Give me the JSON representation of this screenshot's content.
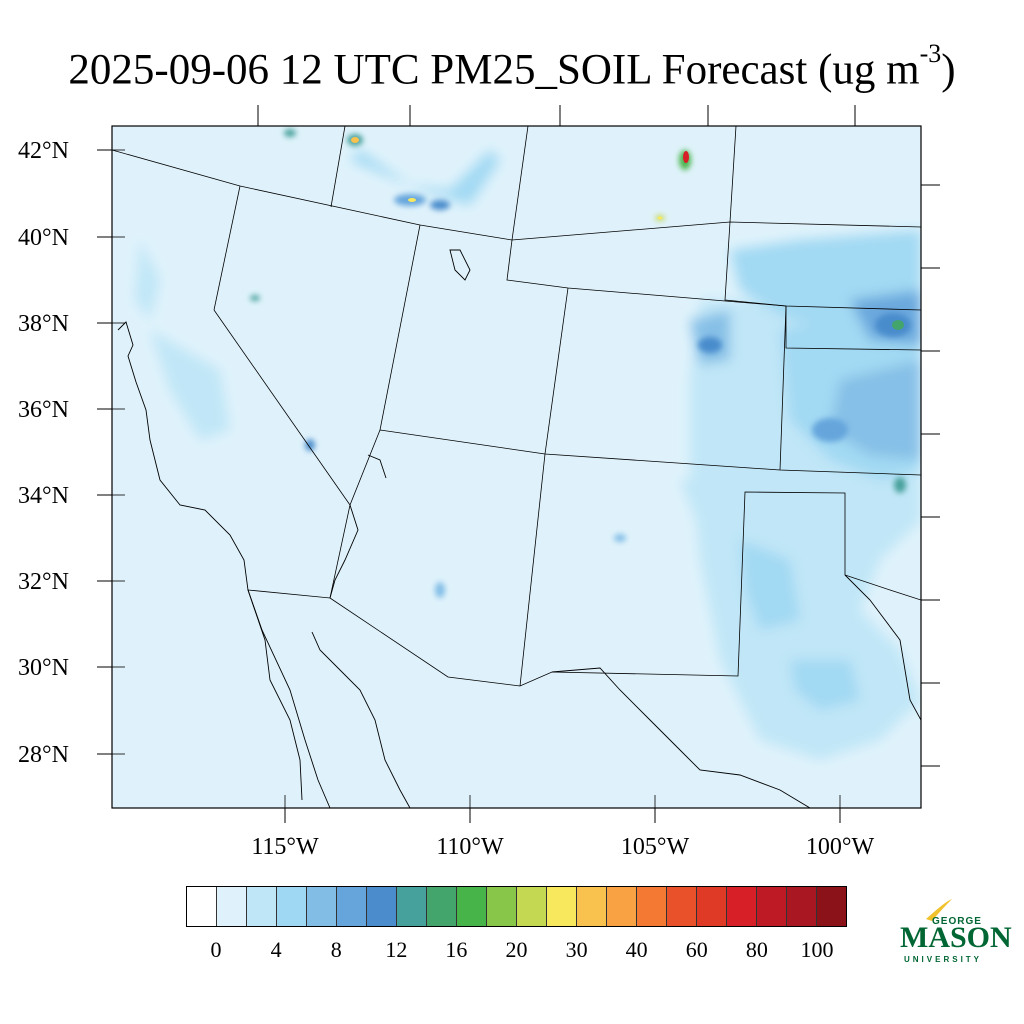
{
  "title": {
    "main": "2025-09-06 12 UTC PM25_SOIL Forecast (ug m",
    "exponent": "-3",
    "close": ")"
  },
  "map": {
    "latitude_labels": [
      "42°N",
      "40°N",
      "38°N",
      "36°N",
      "34°N",
      "32°N",
      "30°N",
      "28°N"
    ],
    "longitude_labels": [
      "115°W",
      "110°W",
      "105°W",
      "100°W"
    ],
    "colors": {
      "background": "#dff2fb",
      "boundary": "#000000"
    }
  },
  "colorbar": {
    "colors": [
      "#ffffff",
      "#dff2fb",
      "#bfe6f7",
      "#9fd8f3",
      "#82bde6",
      "#65a5dc",
      "#4a8ccc",
      "#46a09b",
      "#43a46c",
      "#46b448",
      "#88c64a",
      "#c4d852",
      "#f8e85e",
      "#f9c24f",
      "#f8a243",
      "#f47a34",
      "#e9512b",
      "#df3a26",
      "#d61f26",
      "#be1a26",
      "#a91722",
      "#8c1219"
    ],
    "labels": [
      "0",
      "4",
      "8",
      "12",
      "16",
      "20",
      "30",
      "40",
      "60",
      "80",
      "100"
    ]
  },
  "logo": {
    "line1": "GEORGE",
    "line2": "MASON",
    "line3": "UNIVERSITY"
  }
}
